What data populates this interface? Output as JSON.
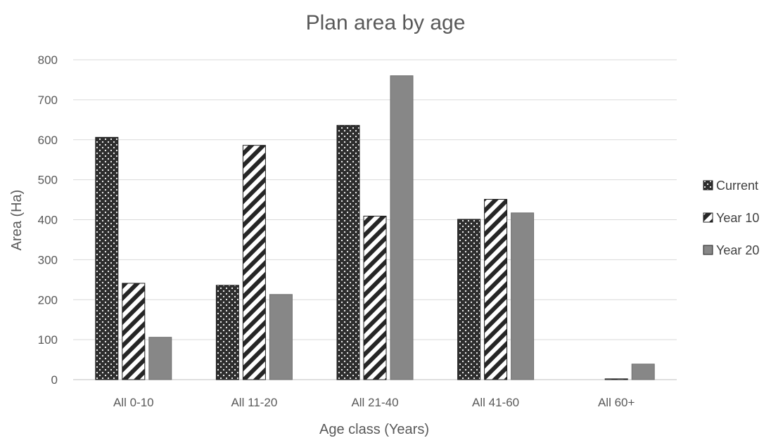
{
  "chart_data": {
    "type": "bar",
    "title": "Plan area by age",
    "xlabel": "Age class (Years)",
    "ylabel": "Area (Ha)",
    "categories": [
      "All 0-10",
      "All 11-20",
      "All 21-40",
      "All 41-60",
      "All 60+"
    ],
    "yticks": [
      "0",
      "100",
      "200",
      "300",
      "400",
      "500",
      "600",
      "700",
      "800"
    ],
    "ylim": [
      0,
      800
    ],
    "grid": true,
    "legend_position": "right",
    "series": [
      {
        "name": "Current",
        "values": [
          606,
          236,
          636,
          401,
          0
        ],
        "pattern": "dots",
        "color": "#2e2e2e"
      },
      {
        "name": "Year 10",
        "values": [
          241,
          586,
          409,
          451,
          2
        ],
        "pattern": "diagonal-stripes",
        "color": "#262626"
      },
      {
        "name": "Year 20",
        "values": [
          106,
          213,
          760,
          417,
          39
        ],
        "pattern": "solid",
        "color": "#878787"
      }
    ]
  }
}
